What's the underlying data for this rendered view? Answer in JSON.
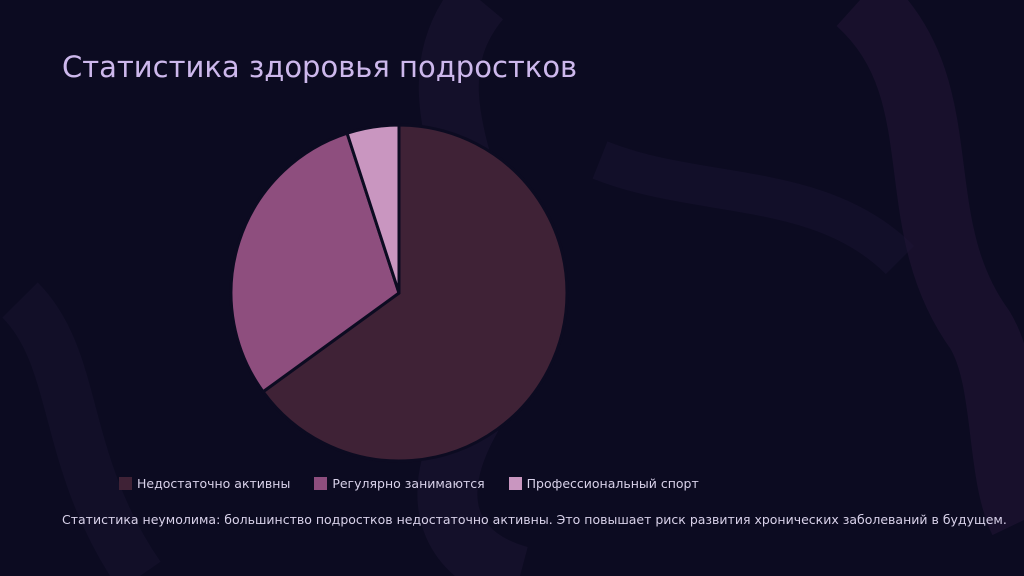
{
  "title": "Статистика здоровья подростков",
  "caption": "Статистика неумолима: большинство подростков недостаточно активны. Это повышает риск развития хронических заболеваний в будущем.",
  "colors": {
    "background": "#0c0b21",
    "title": "#cdb8ec",
    "text": "#d9d2ea",
    "slice_border": "#0c0b21"
  },
  "chart_data": {
    "type": "pie",
    "start_angle": "top (12 o'clock), clockwise",
    "legend_position": "bottom",
    "slices": [
      {
        "label": "Недостаточно активны",
        "value": 65,
        "color": "#3f2236"
      },
      {
        "label": "Регулярно занимаются",
        "value": 30,
        "color": "#8e4e7e"
      },
      {
        "label": "Профессиональный спорт",
        "value": 5,
        "color": "#c996c0"
      }
    ]
  }
}
